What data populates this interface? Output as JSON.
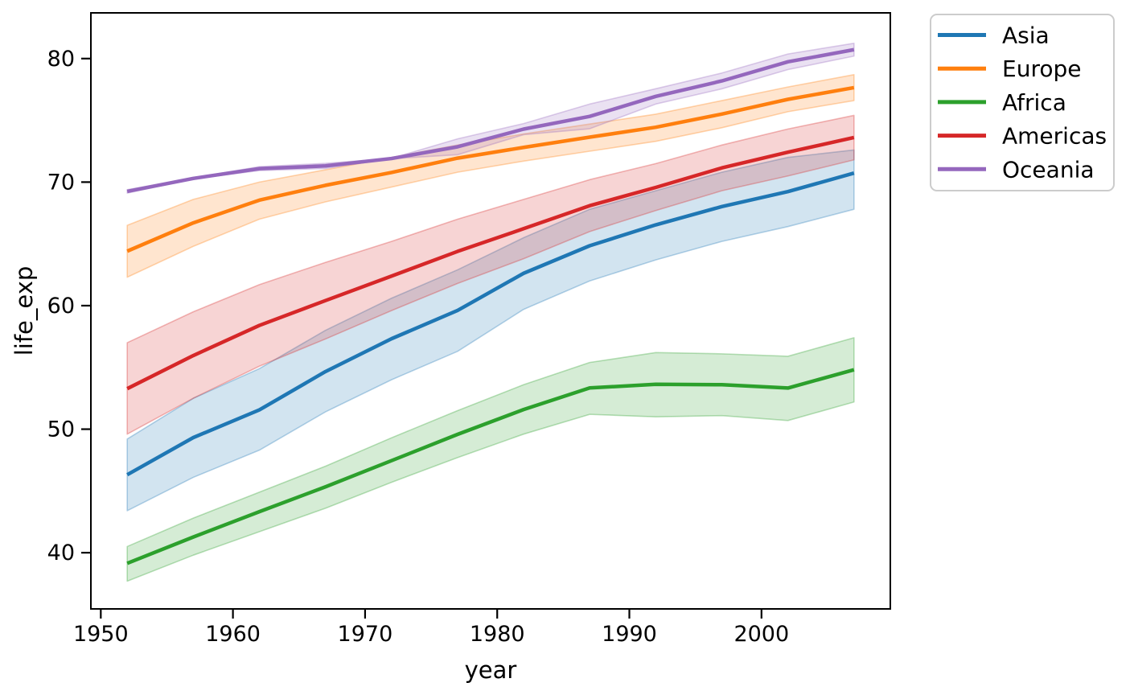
{
  "figure": {
    "background": "#ffffff",
    "text_color": "#000000",
    "frame_color": "#000000",
    "legend_border_color": "#cccccc"
  },
  "chart_data": {
    "type": "line",
    "title": "",
    "xlabel": "year",
    "ylabel": "life_exp",
    "xlim": [
      1949.25,
      2009.75
    ],
    "ylim": [
      35.45,
      83.7
    ],
    "xticks": [
      1950,
      1960,
      1970,
      1980,
      1990,
      2000
    ],
    "xtick_labels": [
      "1950",
      "1960",
      "1970",
      "1980",
      "1990",
      "2000"
    ],
    "yticks": [
      40,
      50,
      60,
      70,
      80
    ],
    "ytick_labels": [
      "40",
      "50",
      "60",
      "70",
      "80"
    ],
    "grid": false,
    "legend_position": "outside upper right",
    "band_meaning": "95% confidence interval around mean life expectancy",
    "x": [
      1952,
      1957,
      1962,
      1967,
      1972,
      1977,
      1982,
      1987,
      1992,
      1997,
      2002,
      2007
    ],
    "series": [
      {
        "name": "Asia",
        "color": "#1f77b4",
        "values": [
          46.31,
          49.32,
          51.56,
          54.66,
          57.32,
          59.61,
          62.62,
          64.85,
          66.54,
          68.02,
          69.23,
          70.73
        ],
        "ci_low": [
          43.4,
          46.1,
          48.3,
          51.4,
          54.0,
          56.3,
          59.7,
          62.0,
          63.7,
          65.2,
          66.4,
          67.8
        ],
        "ci_high": [
          49.2,
          52.5,
          54.9,
          58.0,
          60.6,
          62.9,
          65.5,
          67.8,
          69.3,
          70.8,
          72.0,
          72.6
        ]
      },
      {
        "name": "Europe",
        "color": "#ff7f0e",
        "values": [
          64.41,
          66.7,
          68.54,
          69.74,
          70.78,
          71.94,
          72.81,
          73.64,
          74.44,
          75.51,
          76.7,
          77.65
        ],
        "ci_low": [
          62.3,
          64.8,
          67.0,
          68.4,
          69.6,
          70.8,
          71.7,
          72.5,
          73.3,
          74.4,
          75.7,
          76.6
        ],
        "ci_high": [
          66.5,
          68.6,
          70.0,
          71.0,
          72.0,
          73.0,
          73.9,
          74.7,
          75.5,
          76.6,
          77.7,
          78.7
        ]
      },
      {
        "name": "Africa",
        "color": "#2ca02c",
        "values": [
          39.14,
          41.27,
          43.32,
          45.33,
          47.45,
          49.58,
          51.59,
          53.34,
          53.63,
          53.6,
          53.33,
          54.81
        ],
        "ci_low": [
          37.7,
          39.8,
          41.7,
          43.6,
          45.7,
          47.7,
          49.6,
          51.2,
          51.0,
          51.1,
          50.7,
          52.2
        ],
        "ci_high": [
          40.5,
          42.8,
          44.9,
          47.0,
          49.3,
          51.5,
          53.6,
          55.4,
          56.2,
          56.1,
          55.9,
          57.4
        ]
      },
      {
        "name": "Americas",
        "color": "#d62728",
        "values": [
          53.28,
          55.96,
          58.4,
          60.41,
          62.39,
          64.39,
          66.23,
          68.09,
          69.57,
          71.15,
          72.42,
          73.61
        ],
        "ci_low": [
          49.6,
          52.5,
          55.1,
          57.3,
          59.6,
          61.8,
          63.8,
          66.0,
          67.7,
          69.3,
          70.5,
          71.8
        ],
        "ci_high": [
          57.0,
          59.5,
          61.7,
          63.5,
          65.2,
          67.0,
          68.6,
          70.2,
          71.5,
          73.0,
          74.3,
          75.4
        ]
      },
      {
        "name": "Oceania",
        "color": "#9467bd",
        "values": [
          69.25,
          70.3,
          71.09,
          71.31,
          71.91,
          72.86,
          74.29,
          75.32,
          76.94,
          78.19,
          79.74,
          80.72
        ],
        "ci_low": [
          69.11,
          70.26,
          70.93,
          71.1,
          71.89,
          72.22,
          73.84,
          74.32,
          76.32,
          77.55,
          79.11,
          80.2
        ],
        "ci_high": [
          69.39,
          70.34,
          71.25,
          71.52,
          71.93,
          73.5,
          74.74,
          76.32,
          77.56,
          78.83,
          80.37,
          81.24
        ]
      }
    ]
  }
}
